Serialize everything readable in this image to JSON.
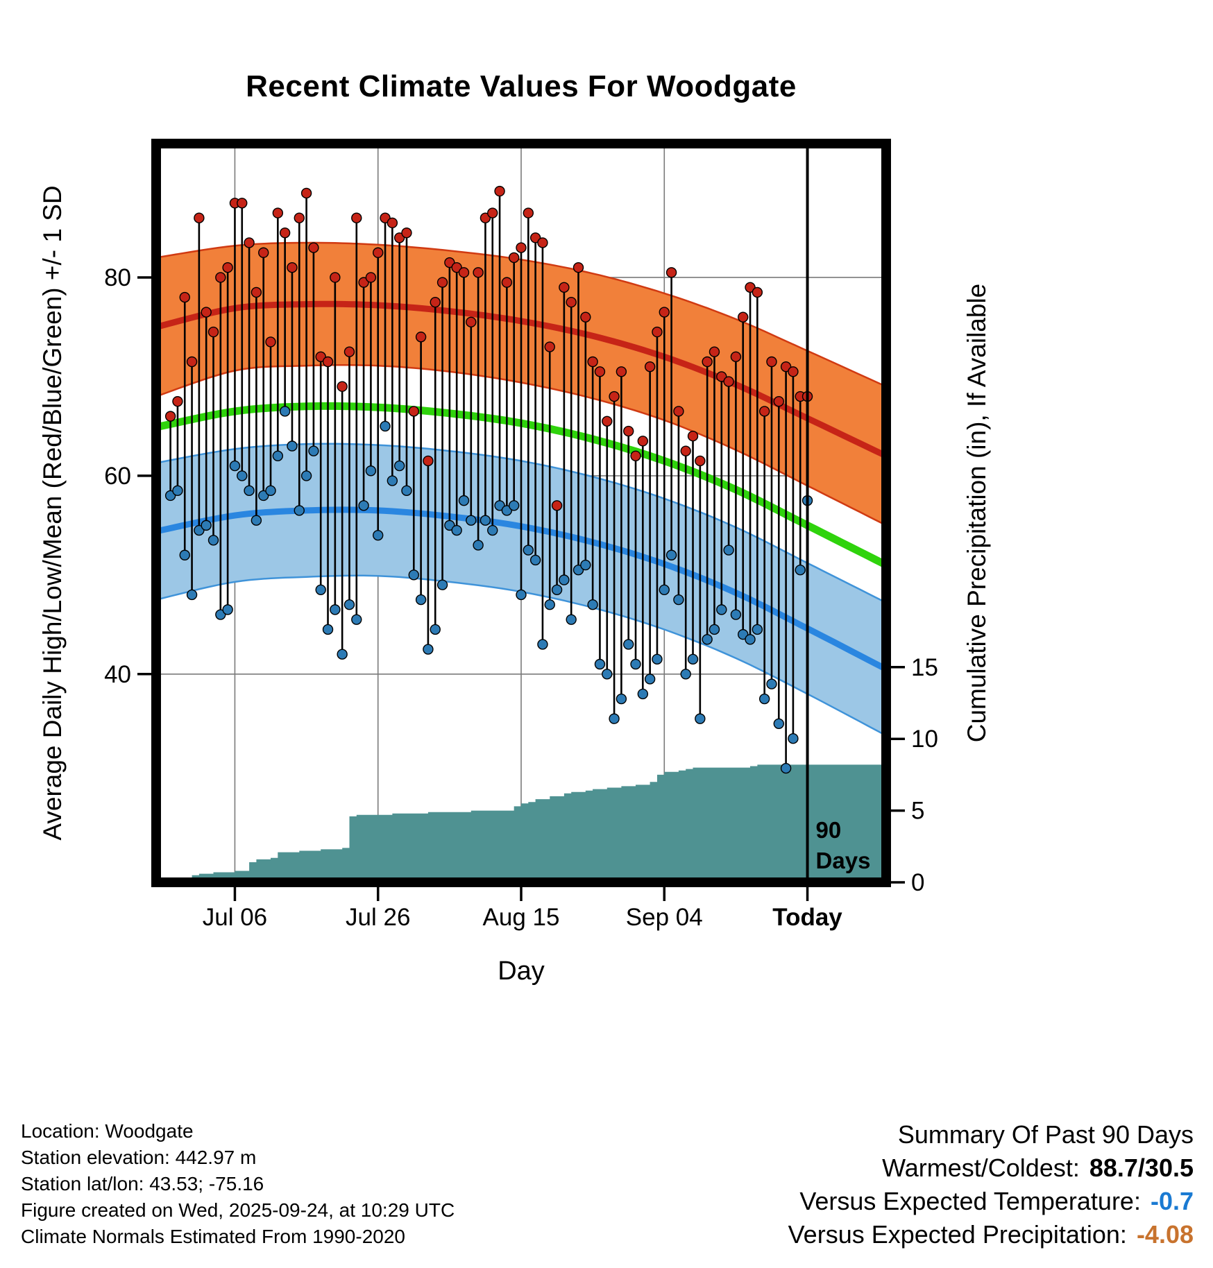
{
  "title": "Recent Climate Values For Woodgate",
  "chart_data": {
    "type": "line",
    "title": "Recent Climate Values For Woodgate",
    "xlabel": "Day",
    "ylabel_left": "Average Daily High/Low/Mean (Red/Blue/Green) +/- 1 SD",
    "ylabel_right": "Cumulative Precipitation (in), If Available",
    "x_axis": {
      "domain": [
        -2,
        100
      ],
      "ticks": [
        {
          "label": "Jul 06",
          "day": 9,
          "bold": false
        },
        {
          "label": "Jul 26",
          "day": 29,
          "bold": false
        },
        {
          "label": "Aug 15",
          "day": 49,
          "bold": false
        },
        {
          "label": "Sep 04",
          "day": 69,
          "bold": false
        },
        {
          "label": "Today",
          "day": 89,
          "bold": true
        }
      ]
    },
    "temp_axis": {
      "ticks": [
        40,
        60,
        80
      ],
      "range": [
        19,
        93.5
      ]
    },
    "precip_axis": {
      "ticks": [
        0,
        5,
        10,
        15
      ],
      "range": [
        0,
        51.5
      ]
    },
    "normals": {
      "days": [
        -2,
        9,
        19,
        29,
        39,
        49,
        59,
        69,
        79,
        89,
        100
      ],
      "high_upper": [
        82.0,
        83.2,
        83.5,
        83.3,
        82.7,
        81.8,
        80.4,
        78.4,
        75.8,
        72.6,
        69.0
      ],
      "high_mean": [
        75.0,
        76.9,
        77.3,
        77.2,
        76.6,
        75.6,
        74.1,
        72.0,
        69.2,
        65.8,
        62.0
      ],
      "high_lower": [
        68.0,
        70.6,
        71.1,
        71.1,
        70.5,
        69.4,
        67.8,
        65.6,
        62.6,
        59.0,
        55.0
      ],
      "mean": [
        64.9,
        66.5,
        67.0,
        66.9,
        66.3,
        65.3,
        63.7,
        61.5,
        58.6,
        55.0,
        51.0
      ],
      "low_upper": [
        61.3,
        62.7,
        63.2,
        63.1,
        62.5,
        61.5,
        59.9,
        57.7,
        54.8,
        51.2,
        47.2
      ],
      "low_mean": [
        54.4,
        56.0,
        56.5,
        56.5,
        55.9,
        54.9,
        53.3,
        51.1,
        48.2,
        44.6,
        40.5
      ],
      "low_lower": [
        47.5,
        49.3,
        49.8,
        49.9,
        49.3,
        48.3,
        46.7,
        44.5,
        41.6,
        38.0,
        33.8
      ]
    },
    "daily": {
      "high": [
        66,
        67.5,
        78,
        71.5,
        86,
        76.5,
        74.5,
        80,
        81,
        87.5,
        87.5,
        83.5,
        78.5,
        82.5,
        73.5,
        86.5,
        84.5,
        81,
        86,
        88.5,
        83,
        72,
        71.5,
        80,
        69,
        72.5,
        86,
        79.5,
        80,
        82.5,
        86,
        85.5,
        84,
        84.5,
        66.5,
        74,
        61.5,
        77.5,
        79.5,
        81.5,
        81,
        80.5,
        75.5,
        80.5,
        86,
        86.5,
        88.7,
        79.5,
        82,
        83,
        86.5,
        84,
        83.5,
        73,
        57,
        79,
        77.5,
        81,
        76,
        71.5,
        70.5,
        65.5,
        68,
        70.5,
        64.5,
        62,
        63.5,
        71,
        74.5,
        76.5,
        80.5,
        66.5,
        62.5,
        64,
        61.5,
        71.5,
        72.5,
        70,
        69.5,
        72,
        76,
        79,
        78.5,
        66.5,
        71.5,
        67.5,
        71,
        70.5,
        68,
        68
      ],
      "low": [
        58,
        58.5,
        52,
        48,
        54.5,
        55,
        53.5,
        46,
        46.5,
        61,
        60,
        58.5,
        55.5,
        58,
        58.5,
        62,
        66.5,
        63,
        56.5,
        60,
        62.5,
        48.5,
        44.5,
        46.5,
        42,
        47,
        45.5,
        57,
        60.5,
        54,
        65,
        59.5,
        61,
        58.5,
        50,
        47.5,
        42.5,
        44.5,
        49,
        55,
        54.5,
        57.5,
        55.5,
        53,
        55.5,
        54.5,
        57,
        56.5,
        57,
        48,
        52.5,
        51.5,
        43,
        47,
        48.5,
        49.5,
        45.5,
        50.5,
        51,
        47,
        41,
        40,
        35.5,
        37.5,
        43,
        41,
        38,
        39.5,
        41.5,
        48.5,
        52,
        47.5,
        40,
        41.5,
        35.5,
        43.5,
        44.5,
        46.5,
        52.5,
        46,
        44,
        43.5,
        44.5,
        37.5,
        39,
        35,
        30.5,
        33.5,
        50.5,
        57.5
      ],
      "cumulative_precip": [
        0,
        0,
        0.3,
        0.5,
        0.6,
        0.6,
        0.7,
        0.7,
        0.7,
        0.8,
        0.8,
        1.4,
        1.6,
        1.6,
        1.7,
        2.1,
        2.1,
        2.1,
        2.2,
        2.2,
        2.2,
        2.3,
        2.3,
        2.3,
        2.4,
        4.6,
        4.7,
        4.7,
        4.7,
        4.7,
        4.7,
        4.8,
        4.8,
        4.8,
        4.8,
        4.8,
        4.9,
        4.9,
        4.9,
        4.9,
        4.9,
        4.9,
        5.0,
        5.0,
        5.0,
        5.0,
        5.0,
        5.0,
        5.3,
        5.5,
        5.6,
        5.8,
        5.8,
        6.0,
        6.0,
        6.2,
        6.3,
        6.3,
        6.4,
        6.5,
        6.5,
        6.6,
        6.6,
        6.7,
        6.7,
        6.8,
        6.8,
        7.0,
        7.5,
        7.7,
        7.7,
        7.8,
        7.9,
        8.0,
        8.0,
        8.0,
        8.0,
        8.0,
        8.0,
        8.0,
        8.0,
        8.1,
        8.2,
        8.2,
        8.2,
        8.2,
        8.2,
        8.2,
        8.2,
        8.2
      ]
    },
    "today_day": 89,
    "annotation": {
      "lines": [
        "90",
        "Days"
      ],
      "day": 89
    },
    "colors": {
      "high_band": "#f1803a",
      "high_band_edge": "#d03a12",
      "high_line": "#c62417",
      "high_dot": "#c62417",
      "low_band": "#9cc7e6",
      "low_band_edge": "#3f93d9",
      "low_line": "#2a86e0",
      "low_dot": "#2d7bb5",
      "mean_line": "#2fd30c",
      "precip_fill": "#4f9292",
      "stem": "#000000",
      "grid": "#7a7a7a",
      "frame": "#000000"
    }
  },
  "footer_left": {
    "lines": [
      "Location: Woodgate",
      "Station elevation: 442.97 m",
      "Station lat/lon: 43.53; -75.16",
      "Figure created on Wed, 2025-09-24, at 10:29 UTC",
      "Climate Normals Estimated From 1990-2020"
    ]
  },
  "summary": {
    "title": "Summary Of Past 90 Days",
    "rows": [
      {
        "label": "Warmest/Coldest:",
        "value": "88.7/30.5",
        "color": "#000000"
      },
      {
        "label": "Versus Expected Temperature:",
        "value": "-0.7",
        "color": "#1a7ad2"
      },
      {
        "label": "Versus Expected Precipitation:",
        "value": "-4.08",
        "color": "#c8732e"
      }
    ]
  }
}
